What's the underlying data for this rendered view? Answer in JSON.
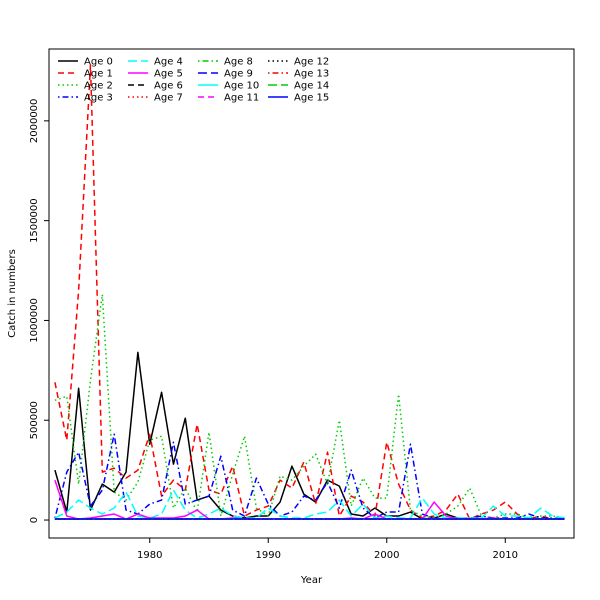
{
  "chart_data": {
    "type": "line",
    "title": "",
    "xlabel": "Year",
    "ylabel": "Catch in numbers",
    "xlim": [
      1971.5,
      2015.8
    ],
    "ylim": [
      -90000,
      2360000
    ],
    "x_ticks": [
      1980,
      1990,
      2000,
      2010
    ],
    "y_ticks": [
      0,
      500000,
      1000000,
      1500000,
      2000000
    ],
    "legend_position": "top-left",
    "grid": false,
    "x": [
      1972,
      1973,
      1974,
      1975,
      1976,
      1977,
      1978,
      1979,
      1980,
      1981,
      1982,
      1983,
      1984,
      1985,
      1986,
      1987,
      1988,
      1989,
      1990,
      1991,
      1992,
      1993,
      1994,
      1995,
      1996,
      1997,
      1998,
      1999,
      2000,
      2001,
      2002,
      2003,
      2004,
      2005,
      2006,
      2007,
      2008,
      2009,
      2010,
      2011,
      2012,
      2013,
      2014,
      2015
    ],
    "series": [
      {
        "name": "Age 0",
        "color": "#000000",
        "dash": "solid",
        "values": [
          250000,
          40000,
          660000,
          50000,
          180000,
          140000,
          240000,
          840000,
          380000,
          640000,
          280000,
          510000,
          100000,
          120000,
          50000,
          20000,
          10000,
          20000,
          20000,
          90000,
          270000,
          130000,
          90000,
          200000,
          170000,
          30000,
          20000,
          60000,
          20000,
          20000,
          40000,
          5000,
          10000,
          30000,
          10000,
          5000,
          5000,
          5000,
          5000,
          5000,
          5000,
          5000,
          5000,
          5000
        ]
      },
      {
        "name": "Age 1",
        "color": "#ff0000",
        "dash": "dashed",
        "values": [
          690000,
          400000,
          1150000,
          2280000,
          240000,
          260000,
          210000,
          250000,
          430000,
          120000,
          200000,
          150000,
          480000,
          150000,
          130000,
          270000,
          20000,
          50000,
          70000,
          200000,
          160000,
          290000,
          80000,
          340000,
          20000,
          120000,
          90000,
          20000,
          390000,
          180000,
          50000,
          10000,
          20000,
          50000,
          130000,
          5000,
          30000,
          50000,
          90000,
          30000,
          5000,
          20000,
          5000,
          10000
        ]
      },
      {
        "name": "Age 2",
        "color": "#00cd00",
        "dash": "dotted",
        "values": [
          600000,
          620000,
          180000,
          700000,
          1130000,
          140000,
          100000,
          190000,
          400000,
          420000,
          60000,
          160000,
          40000,
          440000,
          20000,
          230000,
          420000,
          60000,
          20000,
          220000,
          200000,
          270000,
          330000,
          180000,
          500000,
          70000,
          210000,
          110000,
          110000,
          630000,
          50000,
          20000,
          10000,
          30000,
          70000,
          160000,
          20000,
          10000,
          30000,
          30000,
          10000,
          20000,
          20000,
          10000
        ]
      },
      {
        "name": "Age 3",
        "color": "#0000ff",
        "dash": "dotdash",
        "values": [
          10000,
          240000,
          340000,
          70000,
          150000,
          430000,
          50000,
          30000,
          80000,
          100000,
          390000,
          80000,
          100000,
          120000,
          320000,
          50000,
          20000,
          210000,
          80000,
          20000,
          40000,
          120000,
          100000,
          190000,
          60000,
          250000,
          60000,
          10000,
          40000,
          40000,
          380000,
          30000,
          10000,
          5000,
          5000,
          10000,
          20000,
          10000,
          10000,
          10000,
          30000,
          10000,
          10000,
          5000
        ]
      },
      {
        "name": "Age 4",
        "color": "#00ffff",
        "dash": "longdash",
        "values": [
          10000,
          40000,
          100000,
          60000,
          30000,
          60000,
          140000,
          20000,
          10000,
          30000,
          150000,
          50000,
          10000,
          30000,
          60000,
          20000,
          10000,
          10000,
          60000,
          20000,
          10000,
          10000,
          30000,
          40000,
          100000,
          20000,
          80000,
          10000,
          20000,
          10000,
          10000,
          110000,
          30000,
          10000,
          10000,
          10000,
          10000,
          70000,
          20000,
          20000,
          10000,
          60000,
          20000,
          10000
        ]
      },
      {
        "name": "Age 5",
        "color": "#ff00ff",
        "dash": "solid",
        "values": [
          200000,
          20000,
          5000,
          10000,
          20000,
          30000,
          5000,
          30000,
          10000,
          10000,
          10000,
          20000,
          50000,
          5000,
          5000,
          10000,
          5000,
          5000,
          5000,
          5000,
          5000,
          5000,
          5000,
          5000,
          5000,
          10000,
          5000,
          30000,
          5000,
          5000,
          5000,
          5000,
          90000,
          20000,
          5000,
          5000,
          5000,
          10000,
          5000,
          5000,
          5000,
          5000,
          5000,
          5000
        ]
      },
      {
        "name": "Age 6",
        "color": "#000000",
        "dash": "dashed",
        "values": [
          5000,
          5000,
          5000,
          5000,
          5000,
          5000,
          5000,
          5000,
          5000,
          5000,
          5000,
          5000,
          5000,
          5000,
          5000,
          5000,
          5000,
          5000,
          5000,
          5000,
          5000,
          5000,
          5000,
          5000,
          5000,
          5000,
          5000,
          5000,
          5000,
          5000,
          5000,
          5000,
          5000,
          5000,
          5000,
          5000,
          5000,
          5000,
          5000,
          5000,
          5000,
          5000,
          5000,
          5000
        ]
      },
      {
        "name": "Age 7",
        "color": "#ff0000",
        "dash": "dotted",
        "values": [
          5000,
          5000,
          5000,
          5000,
          5000,
          5000,
          5000,
          5000,
          5000,
          5000,
          5000,
          5000,
          5000,
          5000,
          5000,
          5000,
          5000,
          5000,
          5000,
          5000,
          5000,
          5000,
          5000,
          5000,
          5000,
          5000,
          5000,
          5000,
          5000,
          5000,
          5000,
          5000,
          5000,
          5000,
          5000,
          5000,
          5000,
          5000,
          5000,
          5000,
          5000,
          5000,
          5000,
          5000
        ]
      },
      {
        "name": "Age 8",
        "color": "#00cd00",
        "dash": "dotdash",
        "values": [
          5000,
          5000,
          5000,
          5000,
          5000,
          5000,
          5000,
          5000,
          5000,
          5000,
          5000,
          5000,
          5000,
          5000,
          5000,
          5000,
          5000,
          5000,
          5000,
          5000,
          5000,
          5000,
          5000,
          5000,
          5000,
          5000,
          5000,
          5000,
          5000,
          5000,
          5000,
          5000,
          5000,
          5000,
          5000,
          5000,
          5000,
          5000,
          5000,
          5000,
          5000,
          5000,
          5000,
          5000
        ]
      },
      {
        "name": "Age 9",
        "color": "#0000ff",
        "dash": "longdash",
        "values": [
          5000,
          5000,
          5000,
          5000,
          5000,
          5000,
          5000,
          5000,
          5000,
          5000,
          5000,
          5000,
          5000,
          5000,
          5000,
          5000,
          5000,
          5000,
          5000,
          5000,
          5000,
          5000,
          5000,
          5000,
          5000,
          5000,
          5000,
          5000,
          5000,
          5000,
          5000,
          5000,
          5000,
          5000,
          5000,
          5000,
          5000,
          5000,
          5000,
          5000,
          5000,
          5000,
          5000,
          5000
        ]
      },
      {
        "name": "Age 10",
        "color": "#00ffff",
        "dash": "solid",
        "values": [
          5000,
          5000,
          5000,
          5000,
          5000,
          5000,
          5000,
          5000,
          5000,
          5000,
          5000,
          5000,
          5000,
          5000,
          5000,
          5000,
          5000,
          5000,
          5000,
          5000,
          5000,
          5000,
          5000,
          5000,
          5000,
          5000,
          5000,
          5000,
          5000,
          5000,
          5000,
          5000,
          5000,
          5000,
          5000,
          5000,
          5000,
          5000,
          5000,
          5000,
          5000,
          5000,
          5000,
          5000
        ]
      },
      {
        "name": "Age 11",
        "color": "#ff00ff",
        "dash": "dashed",
        "values": [
          5000,
          5000,
          5000,
          5000,
          5000,
          5000,
          5000,
          5000,
          5000,
          5000,
          5000,
          5000,
          5000,
          5000,
          5000,
          5000,
          5000,
          5000,
          5000,
          5000,
          5000,
          5000,
          5000,
          5000,
          5000,
          5000,
          5000,
          5000,
          5000,
          5000,
          5000,
          5000,
          5000,
          5000,
          5000,
          5000,
          5000,
          5000,
          5000,
          5000,
          5000,
          5000,
          5000,
          5000
        ]
      },
      {
        "name": "Age 12",
        "color": "#000000",
        "dash": "dotted",
        "values": [
          5000,
          5000,
          5000,
          5000,
          5000,
          5000,
          5000,
          5000,
          5000,
          5000,
          5000,
          5000,
          5000,
          5000,
          5000,
          5000,
          5000,
          5000,
          5000,
          5000,
          5000,
          5000,
          5000,
          5000,
          5000,
          5000,
          5000,
          5000,
          5000,
          5000,
          5000,
          5000,
          5000,
          5000,
          5000,
          5000,
          5000,
          5000,
          5000,
          5000,
          5000,
          5000,
          5000,
          5000
        ]
      },
      {
        "name": "Age 13",
        "color": "#ff0000",
        "dash": "dotdash",
        "values": [
          5000,
          5000,
          5000,
          5000,
          5000,
          5000,
          5000,
          5000,
          5000,
          5000,
          5000,
          5000,
          5000,
          5000,
          5000,
          5000,
          5000,
          5000,
          5000,
          5000,
          5000,
          5000,
          5000,
          5000,
          5000,
          5000,
          5000,
          5000,
          5000,
          5000,
          5000,
          5000,
          5000,
          5000,
          5000,
          5000,
          5000,
          5000,
          5000,
          5000,
          5000,
          5000,
          5000,
          5000
        ]
      },
      {
        "name": "Age 14",
        "color": "#00cd00",
        "dash": "longdash",
        "values": [
          5000,
          5000,
          5000,
          5000,
          5000,
          5000,
          5000,
          5000,
          5000,
          5000,
          5000,
          5000,
          5000,
          5000,
          5000,
          5000,
          5000,
          5000,
          5000,
          5000,
          5000,
          5000,
          5000,
          5000,
          5000,
          5000,
          5000,
          5000,
          5000,
          5000,
          5000,
          5000,
          5000,
          5000,
          5000,
          5000,
          5000,
          5000,
          5000,
          5000,
          5000,
          5000,
          5000,
          5000
        ]
      },
      {
        "name": "Age 15",
        "color": "#0000ff",
        "dash": "solid",
        "values": [
          5000,
          5000,
          5000,
          5000,
          5000,
          5000,
          5000,
          5000,
          5000,
          5000,
          5000,
          5000,
          5000,
          5000,
          5000,
          5000,
          5000,
          5000,
          5000,
          5000,
          5000,
          5000,
          5000,
          5000,
          5000,
          5000,
          5000,
          5000,
          5000,
          5000,
          5000,
          5000,
          5000,
          5000,
          5000,
          5000,
          5000,
          5000,
          5000,
          5000,
          5000,
          5000,
          5000,
          5000
        ]
      }
    ]
  }
}
